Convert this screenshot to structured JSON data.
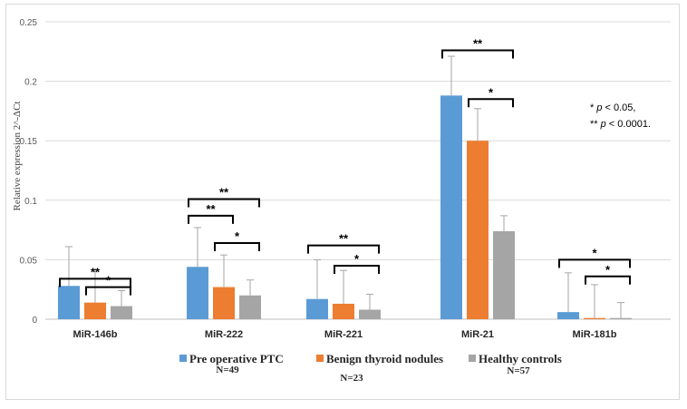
{
  "chart_data": {
    "type": "bar",
    "categories": [
      "MiR-146b",
      "MiR-222",
      "MiR-221",
      "MiR-21",
      "MiR-181b"
    ],
    "series": [
      {
        "name": "Pre operative PTC",
        "n_label": "N=49",
        "color": "#5b9bd5",
        "values": [
          0.028,
          0.044,
          0.017,
          0.188,
          0.006
        ],
        "error": [
          0.033,
          0.033,
          0.033,
          0.033,
          0.033
        ]
      },
      {
        "name": "Benign thyroid nodules",
        "n_label": "N=23",
        "color": "#ed7d31",
        "values": [
          0.014,
          0.027,
          0.013,
          0.15,
          0.001
        ],
        "error": [
          0.028,
          0.027,
          0.028,
          0.027,
          0.028
        ]
      },
      {
        "name": "Healthy controls",
        "n_label": "N=57",
        "color": "#a5a5a5",
        "values": [
          0.011,
          0.02,
          0.008,
          0.074,
          0.001
        ],
        "error": [
          0.013,
          0.013,
          0.013,
          0.013,
          0.013
        ]
      }
    ],
    "ylabel": "Relative expression 2^-ΔCt",
    "ylim": [
      0,
      0.25
    ],
    "yticks": [
      "0",
      "0.05",
      "0.1",
      "0.15",
      "0.2",
      "0.25"
    ],
    "grid": true,
    "legend_position": "bottom",
    "significance": [
      {
        "category": 0,
        "from": 0,
        "to": 2,
        "label": "**",
        "level": 0.034
      },
      {
        "category": 0,
        "from": 1,
        "to": 2,
        "label": "*",
        "level": 0.027
      },
      {
        "category": 1,
        "from": 0,
        "to": 2,
        "label": "**",
        "level": 0.101
      },
      {
        "category": 1,
        "from": 0,
        "to": 1,
        "label": "**",
        "level": 0.087
      },
      {
        "category": 1,
        "from": 1,
        "to": 2,
        "label": "*",
        "level": 0.064
      },
      {
        "category": 2,
        "from": 0,
        "to": 2,
        "label": "**",
        "level": 0.062
      },
      {
        "category": 2,
        "from": 1,
        "to": 2,
        "label": "*",
        "level": 0.045
      },
      {
        "category": 3,
        "from": 0,
        "to": 2,
        "label": "**",
        "level": 0.226
      },
      {
        "category": 3,
        "from": 1,
        "to": 2,
        "label": "*",
        "level": 0.185
      },
      {
        "category": 4,
        "from": 0,
        "to": 2,
        "label": "*",
        "level": 0.05
      },
      {
        "category": 4,
        "from": 1,
        "to": 2,
        "label": "*",
        "level": 0.036
      }
    ],
    "annotation_lines": [
      {
        "prefix": "* ",
        "p": "p",
        "rest": " < 0.05,"
      },
      {
        "prefix": "** ",
        "p": "p",
        "rest": " < 0.0001."
      }
    ]
  }
}
